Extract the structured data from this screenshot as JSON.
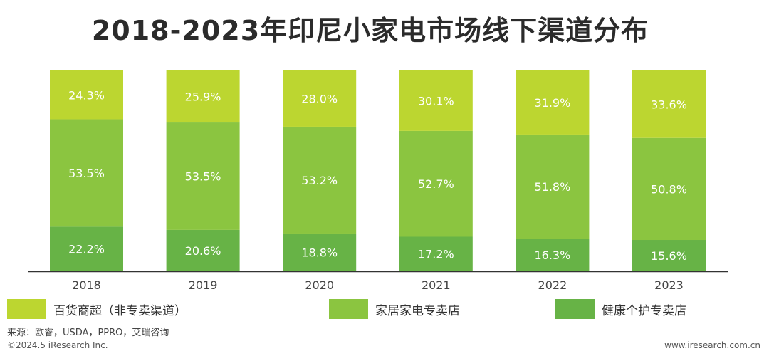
{
  "title": "2018-2023年印尼小家电市场线下渠道分布",
  "source": "来源：欧睿，USDA，PPRO，艾瑞咨询",
  "copyright": "©2024.5 iResearch Inc.",
  "website": "www.iresearch.com.cn",
  "colors": {
    "dept": "#bcd630",
    "appliance": "#8bc540",
    "health": "#67b346",
    "axis": "#333333"
  },
  "chart_data": {
    "type": "bar",
    "stacked": true,
    "percent": true,
    "title": "2018-2023年印尼小家电市场线下渠道分布",
    "categories": [
      "2018",
      "2019",
      "2020",
      "2021",
      "2022",
      "2023"
    ],
    "series": [
      {
        "name": "健康个护专卖店",
        "values": [
          22.2,
          20.6,
          18.8,
          17.2,
          16.3,
          15.6
        ],
        "labels": [
          "22.2%",
          "20.6%",
          "18.8%",
          "17.2%",
          "16.3%",
          "15.6%"
        ]
      },
      {
        "name": "家居家电专卖店",
        "values": [
          53.5,
          53.5,
          53.2,
          52.7,
          51.8,
          50.8
        ],
        "labels": [
          "53.5%",
          "53.5%",
          "53.2%",
          "52.7%",
          "51.8%",
          "50.8%"
        ]
      },
      {
        "name": "百货商超（非专卖渠道）",
        "values": [
          24.3,
          25.9,
          28.0,
          30.1,
          31.9,
          33.6
        ],
        "labels": [
          "24.3%",
          "25.9%",
          "28.0%",
          "30.1%",
          "31.9%",
          "33.6%"
        ]
      }
    ],
    "ylim": [
      0,
      100
    ],
    "grid": false,
    "legend_position": "bottom"
  }
}
